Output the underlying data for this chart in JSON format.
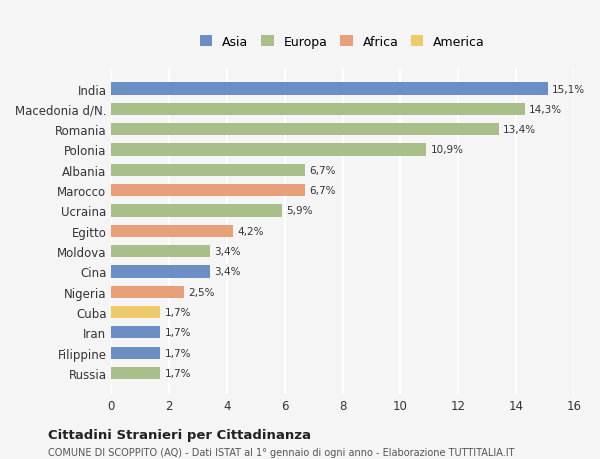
{
  "categories": [
    "Russia",
    "Filippine",
    "Iran",
    "Cuba",
    "Nigeria",
    "Cina",
    "Moldova",
    "Egitto",
    "Ucraina",
    "Marocco",
    "Albania",
    "Polonia",
    "Romania",
    "Macedonia d/N.",
    "India"
  ],
  "values": [
    1.7,
    1.7,
    1.7,
    1.7,
    2.5,
    3.4,
    3.4,
    4.2,
    5.9,
    6.7,
    6.7,
    10.9,
    13.4,
    14.3,
    15.1
  ],
  "labels": [
    "1,7%",
    "1,7%",
    "1,7%",
    "1,7%",
    "2,5%",
    "3,4%",
    "3,4%",
    "4,2%",
    "5,9%",
    "6,7%",
    "6,7%",
    "10,9%",
    "13,4%",
    "14,3%",
    "15,1%"
  ],
  "colors": [
    "#a8bf8a",
    "#6b8ec4",
    "#6b8ec4",
    "#f0c96b",
    "#e8a07a",
    "#6b8ec4",
    "#a8bf8a",
    "#e8a07a",
    "#a8bf8a",
    "#e8a07a",
    "#a8bf8a",
    "#a8bf8a",
    "#a8bf8a",
    "#a8bf8a",
    "#6b8ec4"
  ],
  "legend_labels": [
    "Asia",
    "Europa",
    "Africa",
    "America"
  ],
  "legend_colors": [
    "#6b8ec4",
    "#a8bf8a",
    "#e8a07a",
    "#f0c96b"
  ],
  "title": "Cittadini Stranieri per Cittadinanza",
  "subtitle": "COMUNE DI SCOPPITO (AQ) - Dati ISTAT al 1° gennaio di ogni anno - Elaborazione TUTTITALIA.IT",
  "xlim": [
    0,
    16
  ],
  "xticks": [
    0,
    2,
    4,
    6,
    8,
    10,
    12,
    14,
    16
  ],
  "bg_color": "#f5f5f5",
  "bar_height": 0.6
}
